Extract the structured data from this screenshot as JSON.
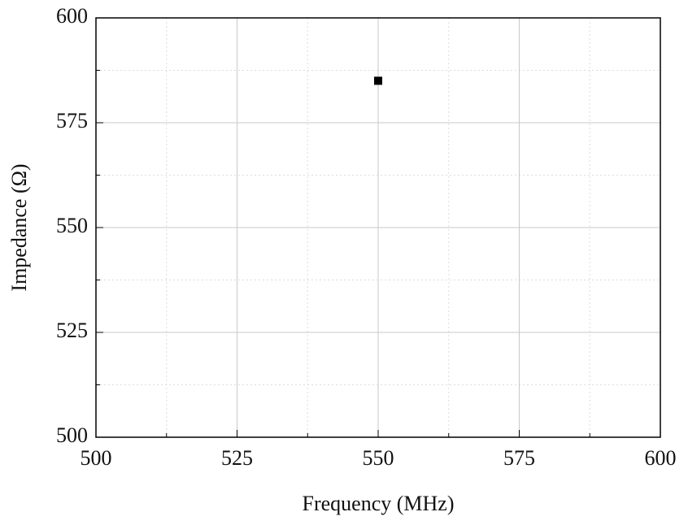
{
  "chart_data": {
    "type": "scatter",
    "x_label": "Frequency (MHz)",
    "y_label": "Impedance (Ω)",
    "x": [
      550
    ],
    "y": [
      585
    ],
    "color": "#000000",
    "xlim": [
      500,
      600
    ],
    "xticks": [
      500,
      525,
      550,
      575,
      600
    ],
    "ylim": [
      500,
      600
    ],
    "yticks": [
      500,
      525,
      550,
      575,
      600
    ],
    "xminorticks": [
      512.5,
      537.5,
      562.5,
      587.5
    ],
    "yminorticks": [
      512.5,
      537.5,
      562.5,
      587.5
    ],
    "grid": true
  }
}
